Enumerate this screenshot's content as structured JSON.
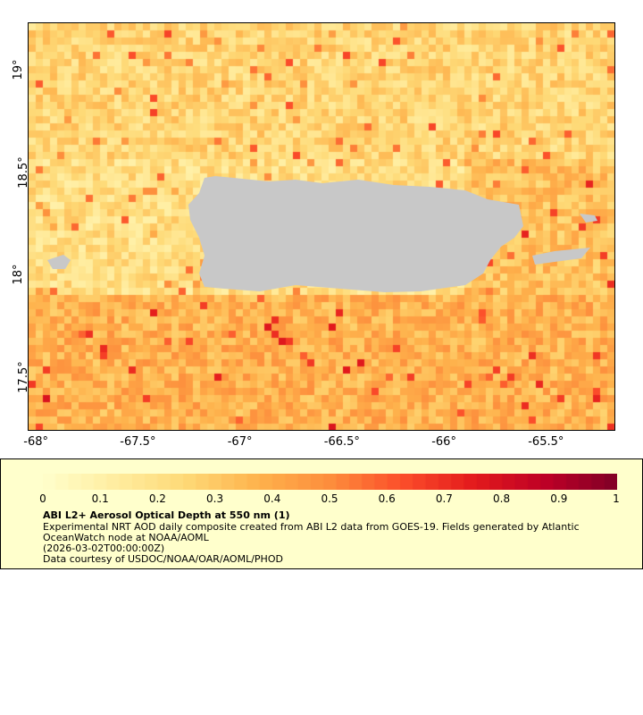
{
  "chart_data": {
    "type": "heatmap",
    "title": "ABI L2+ Aerosol Optical Depth at 550 nm (1)",
    "x_ticks": [
      "-68°",
      "-67.5°",
      "-67°",
      "-66.5°",
      "-66°",
      "-65.5°"
    ],
    "y_ticks": [
      "19°",
      "18.5°",
      "18°",
      "17.5°"
    ],
    "xlim": [
      -68.04,
      -65.16
    ],
    "ylim": [
      17.24,
      19.23
    ],
    "colorbar": {
      "range": [
        0,
        1
      ],
      "ticks": [
        "0",
        "0.1",
        "0.2",
        "0.3",
        "0.4",
        "0.5",
        "0.6",
        "0.7",
        "0.8",
        "0.9",
        "1"
      ],
      "colors": [
        "#ffffcc",
        "#ffeda0",
        "#fed976",
        "#feb24c",
        "#fd8d3c",
        "#fc4e2a",
        "#e31a1c",
        "#bd0026",
        "#800026"
      ]
    },
    "land_color": "#c8c8c8",
    "typical_values": {
      "north_of_island": 0.25,
      "near_island": 0.18,
      "south_of_island": 0.38
    }
  },
  "legend": {
    "title": "ABI L2+ Aerosol Optical Depth at 550 nm (1)",
    "line1": "Experimental NRT AOD daily composite created from ABI L2 data from GOES-19. Fields generated by Atlantic",
    "line2": "OceanWatch node at NOAA/AOML",
    "line3": "(2026-03-02T00:00:00Z)",
    "line4": "Data courtesy of USDOC/NOAA/OAR/AOML/PHOD"
  }
}
